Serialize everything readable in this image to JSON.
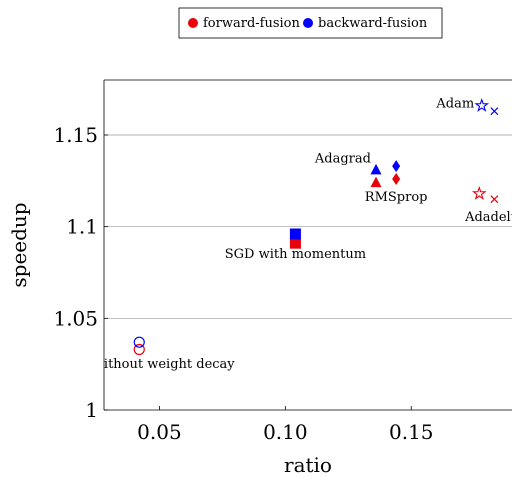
{
  "chart_data": {
    "type": "scatter",
    "title": "",
    "xlabel": "ratio",
    "ylabel": "speedup",
    "xlim": [
      0.028,
      0.19
    ],
    "ylim": [
      1.0,
      1.18
    ],
    "xticks": [
      0.05,
      0.1,
      0.15
    ],
    "xtick_labels": [
      "0.05",
      "0.10",
      "0.15"
    ],
    "yticks": [
      1.0,
      1.05,
      1.1,
      1.15
    ],
    "ytick_labels": [
      "1",
      "1.05",
      "1.1",
      "1.15"
    ],
    "grid": "horizontal",
    "legend_position": "top-center",
    "legend": [
      {
        "name": "forward-fusion",
        "color": "#e8000b"
      },
      {
        "name": "backward-fusion",
        "color": "#0000ff"
      }
    ],
    "series": [
      {
        "name": "forward-fusion",
        "color": "#e8000b",
        "points": [
          {
            "optimizer": "SGD without weight decay",
            "x": 0.042,
            "y": 1.033,
            "marker": "circle-open"
          },
          {
            "optimizer": "SGD with momentum",
            "x": 0.104,
            "y": 1.091,
            "marker": "square"
          },
          {
            "optimizer": "Adagrad",
            "x": 0.136,
            "y": 1.124,
            "marker": "triangle"
          },
          {
            "optimizer": "RMSprop",
            "x": 0.144,
            "y": 1.126,
            "marker": "diamond"
          },
          {
            "optimizer": "Adam",
            "x": 0.177,
            "y": 1.118,
            "marker": "star"
          },
          {
            "optimizer": "Adadelta",
            "x": 0.183,
            "y": 1.115,
            "marker": "cross"
          }
        ]
      },
      {
        "name": "backward-fusion",
        "color": "#0000ff",
        "points": [
          {
            "optimizer": "SGD without weight decay",
            "x": 0.042,
            "y": 1.037,
            "marker": "circle-open"
          },
          {
            "optimizer": "SGD with momentum",
            "x": 0.104,
            "y": 1.096,
            "marker": "square"
          },
          {
            "optimizer": "Adagrad",
            "x": 0.136,
            "y": 1.131,
            "marker": "triangle"
          },
          {
            "optimizer": "RMSprop",
            "x": 0.144,
            "y": 1.133,
            "marker": "diamond"
          },
          {
            "optimizer": "Adam",
            "x": 0.178,
            "y": 1.166,
            "marker": "star"
          },
          {
            "optimizer": "Adadelta",
            "x": 0.183,
            "y": 1.163,
            "marker": "cross"
          }
        ]
      }
    ],
    "annotations": [
      {
        "text": "SGD without weight decay",
        "x": 0.045,
        "y": 1.023,
        "anchor": "middle"
      },
      {
        "text": "SGD with momentum",
        "x": 0.104,
        "y": 1.083,
        "anchor": "middle"
      },
      {
        "text": "Adagrad",
        "x": 0.134,
        "y": 1.135,
        "anchor": "end"
      },
      {
        "text": "RMSprop",
        "x": 0.144,
        "y": 1.114,
        "anchor": "middle"
      },
      {
        "text": "Adam",
        "x": 0.175,
        "y": 1.165,
        "anchor": "end"
      },
      {
        "text": "Adadelta",
        "x": 0.183,
        "y": 1.103,
        "anchor": "middle"
      }
    ]
  }
}
